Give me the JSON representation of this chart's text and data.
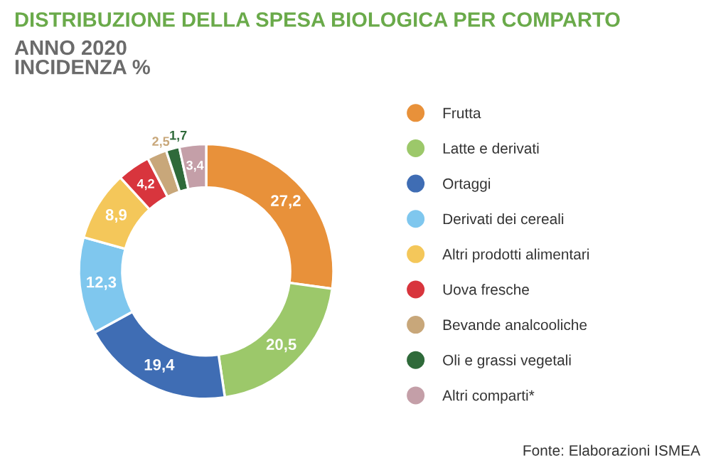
{
  "chart_data": {
    "type": "donut",
    "title": "DISTRIBUZIONE DELLA SPESA BIOLOGICA PER COMPARTO",
    "subtitle": "ANNO 2020\nINCIDENZA %",
    "categories": [
      "Frutta",
      "Latte e derivati",
      "Ortaggi",
      "Derivati dei cereali",
      "Altri prodotti alimentari",
      "Uova fresche",
      "Bevande analcooliche",
      "Oli e grassi vegetali",
      "Altri comparti*"
    ],
    "values": [
      27.2,
      20.5,
      19.4,
      12.3,
      8.9,
      4.2,
      2.5,
      1.7,
      3.4
    ],
    "value_labels": [
      "27,2",
      "20,5",
      "19,4",
      "12,3",
      "8,9",
      "4,2",
      "2,5",
      "1,7",
      "3,4"
    ],
    "colors": [
      "#e8913a",
      "#9cc86a",
      "#3f6db4",
      "#7fc7ee",
      "#f4c75a",
      "#d8353d",
      "#c8a77a",
      "#2f6a3a",
      "#c49fa8"
    ],
    "legend": "right",
    "annotations": [
      "Fonte: Elaborazioni ISMEA"
    ]
  }
}
